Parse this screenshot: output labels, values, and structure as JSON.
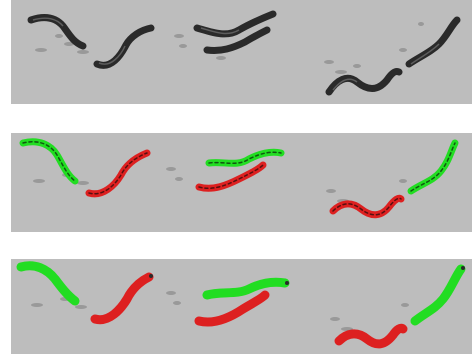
{
  "figure": {
    "rows": [
      {
        "id": "raw",
        "worm_style": "grayscale"
      },
      {
        "id": "tracked-outline",
        "worm_style": "colored-outline"
      },
      {
        "id": "tracked-filled",
        "worm_style": "colored-filled"
      }
    ],
    "colors": {
      "background": "#ffffff",
      "panel": "#bdbdbd",
      "worm_dark": "#2a2a2a",
      "worm_green": "#22dd22",
      "worm_red": "#dd2020",
      "debris": "#8a8a8a"
    }
  }
}
